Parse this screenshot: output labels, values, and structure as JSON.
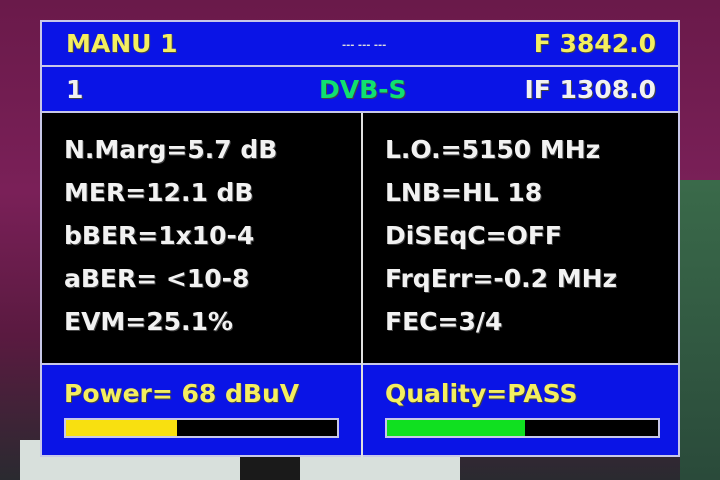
{
  "header": {
    "mode": "MANU 1",
    "indicator": "--- --- ---",
    "frequency": "F 3842.0"
  },
  "subheader": {
    "channel": "1",
    "standard": "DVB-S",
    "if_freq": "IF 1308.0"
  },
  "left_params": [
    "N.Marg=5.7 dB",
    "MER=12.1 dB",
    "bBER=1x10-4",
    "aBER= <10-8",
    "EVM=25.1%"
  ],
  "right_params": [
    "L.O.=5150 MHz",
    "LNB=HL 18",
    "DiSEqC=OFF",
    "FrqErr=-0.2 MHz",
    "FEC=3/4"
  ],
  "power": {
    "label": "Power= 68 dBuV",
    "bar_percent": 41,
    "color": "#f8e010"
  },
  "quality": {
    "label": "Quality=PASS",
    "bar_percent": 51,
    "color": "#10e020"
  }
}
